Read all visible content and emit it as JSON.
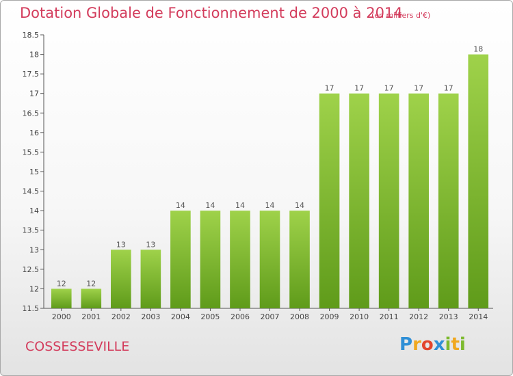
{
  "chart_data": {
    "type": "bar",
    "title": "Dotation Globale de Fonctionnement de 2000 à 2014",
    "subtitle": "(en milliers d'€)",
    "categories": [
      "2000",
      "2001",
      "2002",
      "2003",
      "2004",
      "2005",
      "2006",
      "2007",
      "2008",
      "2009",
      "2010",
      "2011",
      "2012",
      "2013",
      "2014"
    ],
    "values": [
      12,
      12,
      13,
      13,
      14,
      14,
      14,
      14,
      14,
      17,
      17,
      17,
      17,
      17,
      18
    ],
    "data_labels": [
      "12",
      "12",
      "13",
      "13",
      "14",
      "14",
      "14",
      "14",
      "14",
      "17",
      "17",
      "17",
      "17",
      "17",
      "18"
    ],
    "ylim": [
      11.5,
      18.5
    ],
    "yticks": [
      11.5,
      12,
      12.5,
      13,
      13.5,
      14,
      14.5,
      15,
      15.5,
      16,
      16.5,
      17,
      17.5,
      18,
      18.5
    ],
    "ytick_labels": [
      "11.5",
      "12",
      "12.5",
      "13",
      "13.5",
      "14",
      "14.5",
      "15",
      "15.5",
      "16",
      "16.5",
      "17",
      "17.5",
      "18",
      "18.5"
    ],
    "xlabel": "",
    "ylabel": "",
    "grid": false,
    "bar_color": "#7dba2e",
    "bar_color_light": "#9fd24a",
    "bar_color_dark": "#5f9b1a"
  },
  "footer": {
    "commune": "COSSESSEVILLE",
    "brand_letters": [
      "P",
      "r",
      "o",
      "x",
      "i",
      "t",
      "i"
    ],
    "brand_colors": [
      "#2f8fd6",
      "#f0a81f",
      "#e2452c",
      "#2f8fd6",
      "#7dba2e",
      "#f0a81f",
      "#7dba2e"
    ]
  },
  "colors": {
    "title": "#d33c5c",
    "axis": "#555555"
  }
}
